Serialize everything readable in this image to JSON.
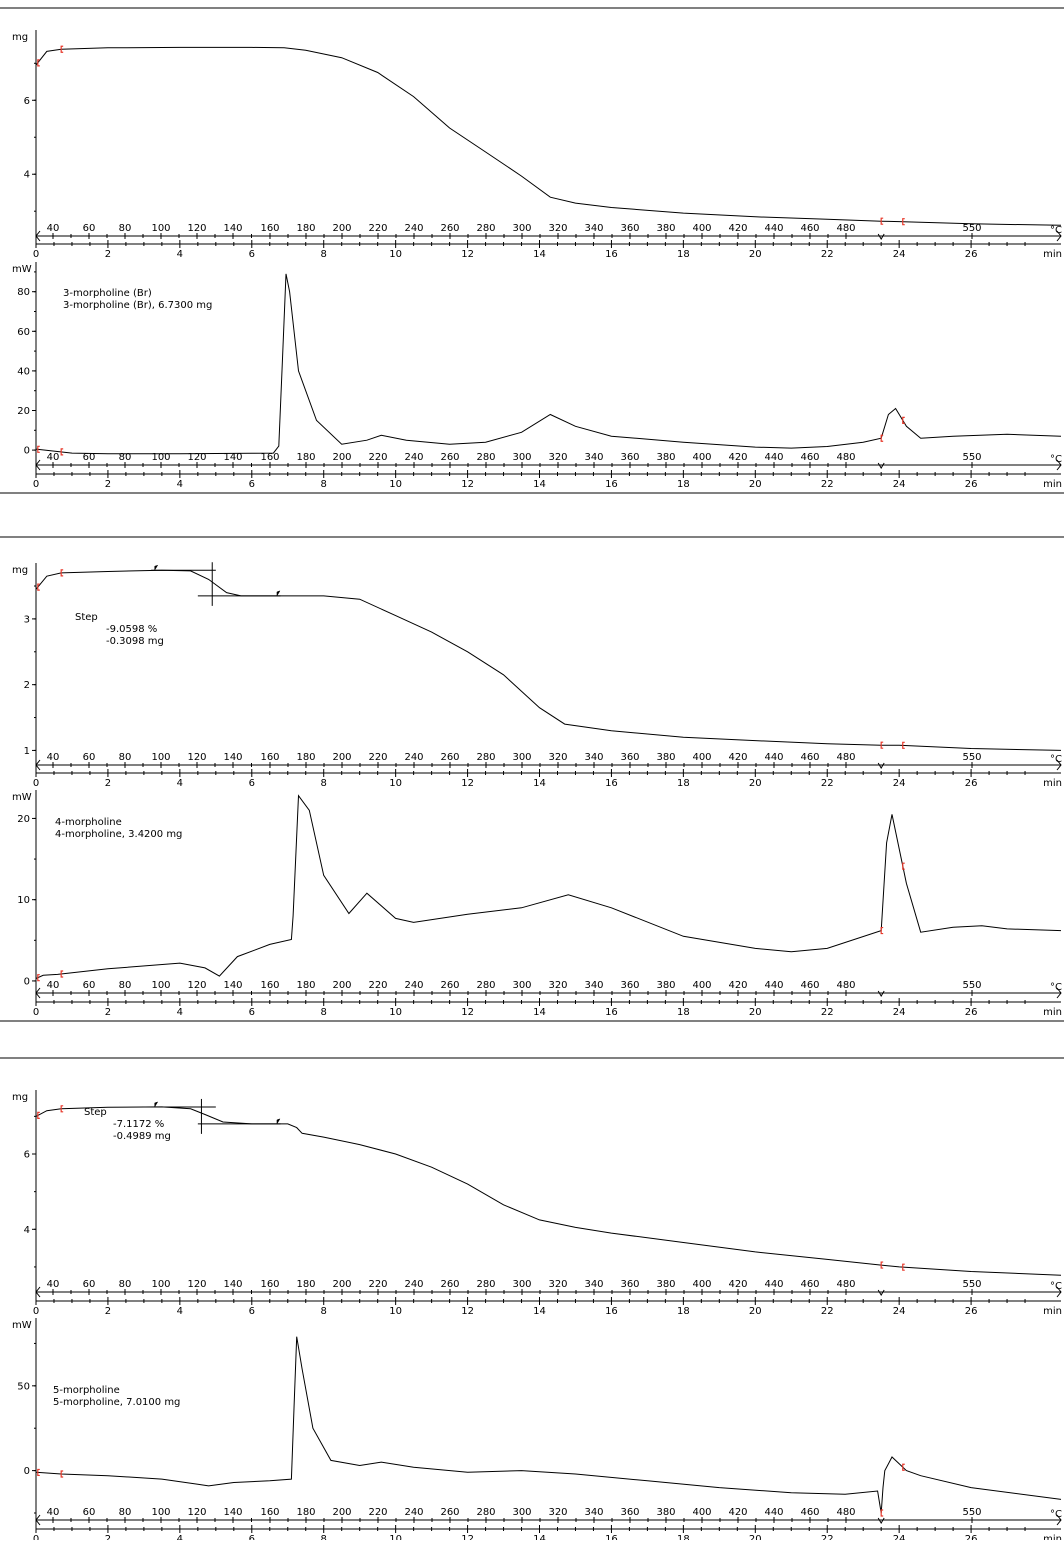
{
  "chart_data": [
    {
      "type": "line",
      "panel": "TGA",
      "ylabel": "mg",
      "y_ticks": [
        6,
        4
      ],
      "ylim": [
        2.6,
        7.9
      ],
      "time_label": "min",
      "temp_label": "°C",
      "time_ticks": [
        "0",
        "2",
        "4",
        "6",
        "8",
        "10",
        "12",
        "14",
        "16",
        "18",
        "20",
        "22",
        "24",
        "26"
      ],
      "temp_ticks": [
        "40",
        "60",
        "80",
        "100",
        "120",
        "140",
        "160",
        "180",
        "200",
        "220",
        "240",
        "260",
        "280",
        "300",
        "320",
        "340",
        "360",
        "380",
        "400",
        "420",
        "440",
        "460",
        "480",
        "550"
      ],
      "annotations": [],
      "series": [
        {
          "x": [
            0,
            0.3,
            0.7,
            2,
            4,
            6,
            6.9,
            7.5,
            8.5,
            9.5,
            10.5,
            11.5,
            12.5,
            13.5,
            14.3,
            15,
            16,
            18,
            20,
            22,
            23.5,
            24,
            26,
            28.5
          ],
          "y": [
            6.95,
            7.32,
            7.38,
            7.42,
            7.43,
            7.43,
            7.42,
            7.35,
            7.15,
            6.75,
            6.1,
            5.25,
            4.6,
            3.95,
            3.38,
            3.22,
            3.1,
            2.95,
            2.85,
            2.78,
            2.73,
            2.72,
            2.66,
            2.62
          ]
        }
      ]
    },
    {
      "type": "line",
      "panel": "DSC",
      "ylabel": "mW",
      "y_ticks": [
        80,
        60,
        40,
        20,
        0
      ],
      "ylim": [
        -5,
        95
      ],
      "time_label": "min",
      "temp_label": "°C",
      "time_ticks": [
        "0",
        "2",
        "4",
        "6",
        "8",
        "10",
        "12",
        "14",
        "16",
        "18",
        "20",
        "22",
        "24",
        "26"
      ],
      "temp_ticks": [
        "40",
        "60",
        "80",
        "100",
        "120",
        "140",
        "160",
        "180",
        "200",
        "220",
        "240",
        "260",
        "280",
        "300",
        "320",
        "340",
        "360",
        "380",
        "400",
        "420",
        "440",
        "460",
        "480",
        "550"
      ],
      "annotations": [
        "3-morpholine (Br)",
        "3-morpholine (Br), 6.7300 mg"
      ],
      "series": [
        {
          "x": [
            0,
            0.5,
            1,
            2,
            4,
            6,
            6.6,
            6.75,
            6.85,
            6.95,
            7.05,
            7.3,
            7.8,
            8.5,
            9.2,
            9.6,
            10.3,
            11.5,
            12.5,
            13.5,
            14.3,
            15,
            16,
            18,
            20,
            21,
            22,
            23,
            23.5,
            23.7,
            23.9,
            24.2,
            24.6,
            25.5,
            27,
            28.5
          ],
          "y": [
            0.5,
            -0.5,
            -1.5,
            -1.8,
            -1.8,
            -1.6,
            -1.5,
            2,
            45,
            89,
            80,
            40,
            15,
            3,
            5,
            7.5,
            5,
            3,
            4,
            9,
            18,
            12,
            7,
            4,
            1.5,
            1,
            1.8,
            4,
            6,
            18,
            21,
            12,
            6,
            7,
            8,
            7
          ]
        }
      ]
    },
    {
      "type": "line",
      "panel": "TGA",
      "ylabel": "mg",
      "y_ticks": [
        3,
        2,
        1
      ],
      "ylim": [
        0.9,
        3.85
      ],
      "time_label": "min",
      "temp_label": "°C",
      "time_ticks": [
        "0",
        "2",
        "4",
        "6",
        "8",
        "10",
        "12",
        "14",
        "16",
        "18",
        "20",
        "22",
        "24",
        "26"
      ],
      "temp_ticks": [
        "40",
        "60",
        "80",
        "100",
        "120",
        "140",
        "160",
        "180",
        "200",
        "220",
        "240",
        "260",
        "280",
        "300",
        "320",
        "340",
        "360",
        "380",
        "400",
        "420",
        "440",
        "460",
        "480",
        "550"
      ],
      "annotations": [
        "Step",
        "-9.0598 %",
        "-0.3098 mg"
      ],
      "series": [
        {
          "x": [
            0,
            0.3,
            0.7,
            2,
            3.5,
            4.3,
            4.8,
            5.3,
            5.7,
            6.5,
            8,
            9,
            10,
            11,
            12,
            13,
            14,
            14.7,
            16,
            18,
            20,
            22,
            23.5,
            24,
            26,
            28.5
          ],
          "y": [
            3.45,
            3.65,
            3.7,
            3.72,
            3.74,
            3.73,
            3.6,
            3.4,
            3.35,
            3.35,
            3.35,
            3.3,
            3.05,
            2.8,
            2.5,
            2.15,
            1.65,
            1.4,
            1.3,
            1.2,
            1.15,
            1.1,
            1.08,
            1.08,
            1.03,
            1.0
          ]
        }
      ]
    },
    {
      "type": "line",
      "panel": "DSC",
      "ylabel": "mW",
      "y_ticks": [
        20,
        10,
        0
      ],
      "ylim": [
        -0.5,
        23.5
      ],
      "time_label": "min",
      "temp_label": "°C",
      "time_ticks": [
        "0",
        "2",
        "4",
        "6",
        "8",
        "10",
        "12",
        "14",
        "16",
        "18",
        "20",
        "22",
        "24",
        "26"
      ],
      "temp_ticks": [
        "40",
        "60",
        "80",
        "100",
        "120",
        "140",
        "160",
        "180",
        "200",
        "220",
        "240",
        "260",
        "280",
        "300",
        "320",
        "340",
        "360",
        "380",
        "400",
        "420",
        "440",
        "460",
        "480",
        "550"
      ],
      "annotations": [
        "4-morpholine",
        "4-morpholine, 3.4200 mg"
      ],
      "series": [
        {
          "x": [
            0,
            0.2,
            0.6,
            2,
            4,
            4.7,
            5.1,
            5.6,
            6.5,
            7.1,
            7.15,
            7.3,
            7.6,
            8,
            8.7,
            9.2,
            10,
            10.5,
            12,
            13.5,
            14.8,
            16,
            18,
            20,
            21,
            22,
            23.5,
            23.65,
            23.8,
            24.2,
            24.6,
            25.5,
            26.3,
            27,
            28.5
          ],
          "y": [
            0.3,
            0.7,
            0.8,
            1.5,
            2.2,
            1.6,
            0.6,
            3,
            4.5,
            5.1,
            8,
            22.8,
            21,
            13,
            8.3,
            10.8,
            7.7,
            7.2,
            8.2,
            9,
            10.6,
            9,
            5.5,
            4,
            3.6,
            4,
            6.2,
            17,
            20.5,
            12,
            6,
            6.6,
            6.8,
            6.4,
            6.2
          ]
        }
      ]
    },
    {
      "type": "line",
      "panel": "TGA",
      "ylabel": "mg",
      "y_ticks": [
        6,
        4
      ],
      "ylim": [
        2.6,
        7.7
      ],
      "time_label": "min",
      "temp_label": "°C",
      "time_ticks": [
        "0",
        "2",
        "4",
        "6",
        "8",
        "10",
        "12",
        "14",
        "16",
        "18",
        "20",
        "22",
        "24",
        "26"
      ],
      "temp_ticks": [
        "40",
        "60",
        "80",
        "100",
        "120",
        "140",
        "160",
        "180",
        "200",
        "220",
        "240",
        "260",
        "280",
        "300",
        "320",
        "340",
        "360",
        "380",
        "400",
        "420",
        "440",
        "460",
        "480",
        "550"
      ],
      "annotations": [
        "Step",
        "-7.1172 %",
        "-0.4989 mg"
      ],
      "series": [
        {
          "x": [
            0,
            0.3,
            0.7,
            2,
            3.5,
            4.3,
            4.7,
            5.2,
            6,
            7,
            7.25,
            7.4,
            8,
            9,
            10,
            11,
            12,
            13,
            14,
            15,
            16,
            18,
            20,
            22,
            23.5,
            24,
            26,
            28.5
          ],
          "y": [
            7.0,
            7.15,
            7.2,
            7.24,
            7.25,
            7.2,
            7.05,
            6.85,
            6.8,
            6.8,
            6.7,
            6.55,
            6.45,
            6.25,
            6.0,
            5.65,
            5.2,
            4.65,
            4.25,
            4.05,
            3.9,
            3.65,
            3.4,
            3.2,
            3.05,
            3.0,
            2.88,
            2.78
          ]
        }
      ]
    },
    {
      "type": "line",
      "panel": "DSC",
      "ylabel": "mW",
      "y_ticks": [
        50,
        0
      ],
      "ylim": [
        -25,
        90
      ],
      "time_label": "min",
      "temp_label": "°C",
      "time_ticks": [
        "0",
        "2",
        "4",
        "6",
        "8",
        "10",
        "12",
        "14",
        "16",
        "18",
        "20",
        "22",
        "24",
        "26"
      ],
      "temp_ticks": [
        "40",
        "60",
        "80",
        "100",
        "120",
        "140",
        "160",
        "180",
        "200",
        "220",
        "240",
        "260",
        "280",
        "300",
        "320",
        "340",
        "360",
        "380",
        "400",
        "420",
        "440",
        "460",
        "480",
        "550"
      ],
      "annotations": [
        "5-morpholine",
        "5-morpholine, 7.0100 mg"
      ],
      "series": [
        {
          "x": [
            0,
            0.7,
            2,
            3.5,
            4.5,
            4.8,
            5.5,
            6.5,
            7.1,
            7.18,
            7.25,
            7.4,
            7.7,
            8.2,
            9,
            9.6,
            10.5,
            12,
            13.5,
            15,
            17,
            19,
            21,
            22.5,
            23.4,
            23.5,
            23.55,
            23.6,
            23.8,
            24.2,
            24.6,
            26,
            28.5
          ],
          "y": [
            -1,
            -2,
            -3,
            -5,
            -8,
            -9,
            -7,
            -6,
            -5,
            40,
            79,
            60,
            25,
            6,
            3,
            5,
            2,
            -1,
            0,
            -2,
            -6,
            -10,
            -13,
            -14,
            -12,
            -25,
            -10,
            0,
            8,
            0,
            -3,
            -10,
            -17
          ]
        }
      ]
    }
  ]
}
